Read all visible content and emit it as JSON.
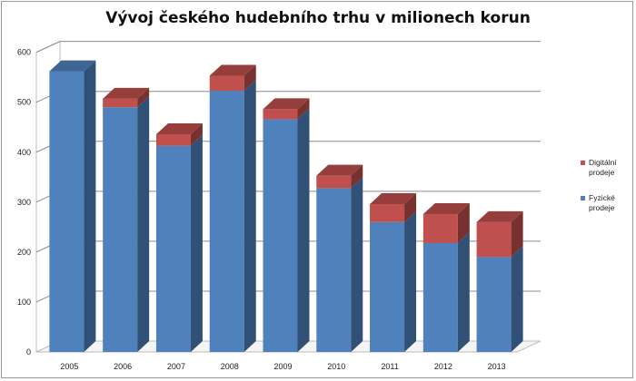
{
  "chart_data": {
    "type": "bar",
    "stacked": true,
    "three_d": true,
    "title": "Vývoj českého hudebního trhu v milionech korun",
    "categories": [
      "2005",
      "2006",
      "2007",
      "2008",
      "2009",
      "2010",
      "2011",
      "2012",
      "2013"
    ],
    "series": [
      {
        "name": "Fyzické prodeje",
        "color": "#4f81bd",
        "values": [
          562,
          490,
          413,
          523,
          466,
          328,
          260,
          218,
          190
        ]
      },
      {
        "name": "Digitální prodeje",
        "color": "#c0504d",
        "values": [
          0,
          17,
          23,
          30,
          20,
          25,
          36,
          58,
          70
        ]
      }
    ],
    "y_ticks": [
      "0",
      "100",
      "200",
      "300",
      "400",
      "500",
      "600"
    ],
    "ylim": [
      0,
      600
    ],
    "grid": true,
    "legend": {
      "position": "right",
      "entries": [
        {
          "line1": "Digitální",
          "line2": "prodeje",
          "color": "#c0504d"
        },
        {
          "line1": "Fyzické",
          "line2": "prodeje",
          "color": "#4f81bd"
        }
      ]
    }
  }
}
